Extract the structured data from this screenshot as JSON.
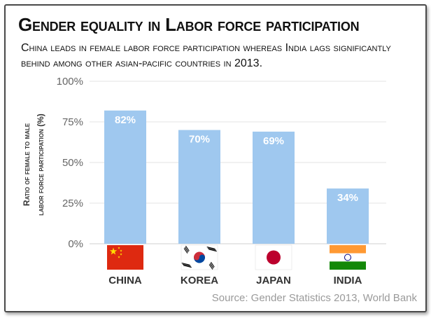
{
  "chart_data": {
    "type": "bar",
    "title": "Gender equality in Labor force participation",
    "subtitle": "China leads in female labor force participation whereas India lags significantly behind among other asian-pacific countries in 2013.",
    "ylabel_line1": "Ratio of female to male",
    "ylabel_line2": "labor force participation (%)",
    "categories": [
      "CHINA",
      "KOREA",
      "JAPAN",
      "INDIA"
    ],
    "values": [
      82,
      70,
      69,
      34
    ],
    "value_labels": [
      "82%",
      "70%",
      "69%",
      "34%"
    ],
    "ylim": [
      0,
      100
    ],
    "yticks": [
      0,
      25,
      50,
      75,
      100
    ],
    "ytick_labels": [
      "0%",
      "25%",
      "50%",
      "75%",
      "100%"
    ],
    "grid": true,
    "bar_color": "#9fc8ef",
    "flags": [
      "china-flag-icon",
      "korea-flag-icon",
      "japan-flag-icon",
      "india-flag-icon"
    ],
    "source": "Source: Gender Statistics 2013, World Bank"
  }
}
